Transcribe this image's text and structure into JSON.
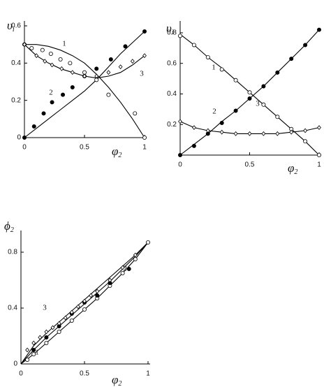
{
  "chart_data": [
    {
      "type": "scatter",
      "ylabel": "υ",
      "ylabel_sub": "i",
      "xlabel": "φ",
      "xlabel_sub": "2",
      "xlim": [
        0,
        1
      ],
      "ylim": [
        0,
        0.6
      ],
      "xticks": [
        0,
        0.5,
        1
      ],
      "yticks": [
        0,
        0.2,
        0.4,
        0.6
      ],
      "series": [
        {
          "name": "1",
          "marker": "open-circle",
          "x": [
            0,
            0.06,
            0.15,
            0.22,
            0.3,
            0.38,
            0.5,
            0.6,
            0.7,
            0.92,
            1
          ],
          "values": [
            0.5,
            0.48,
            0.47,
            0.45,
            0.42,
            0.4,
            0.35,
            0.31,
            0.23,
            0.13,
            0
          ]
        },
        {
          "name": "2",
          "marker": "filled-circle",
          "x": [
            0,
            0.08,
            0.16,
            0.23,
            0.32,
            0.4,
            0.5,
            0.6,
            0.72,
            0.84,
            1
          ],
          "values": [
            0,
            0.06,
            0.13,
            0.19,
            0.23,
            0.27,
            0.33,
            0.37,
            0.42,
            0.49,
            0.57
          ]
        },
        {
          "name": "3",
          "marker": "open-diamond",
          "x": [
            0,
            0.1,
            0.17,
            0.23,
            0.31,
            0.4,
            0.5,
            0.6,
            0.7,
            0.8,
            0.9,
            1
          ],
          "values": [
            0.5,
            0.44,
            0.41,
            0.39,
            0.37,
            0.35,
            0.33,
            0.33,
            0.35,
            0.38,
            0.41,
            0.44
          ]
        }
      ],
      "fit_x": [
        0,
        0.1,
        0.2,
        0.3,
        0.4,
        0.5,
        0.6,
        0.7,
        0.8,
        0.9,
        1
      ],
      "fits": [
        {
          "values": [
            0.5,
            0.5,
            0.49,
            0.47,
            0.44,
            0.4,
            0.34,
            0.27,
            0.19,
            0.1,
            0
          ]
        },
        {
          "values": [
            0,
            0.05,
            0.1,
            0.15,
            0.2,
            0.25,
            0.31,
            0.38,
            0.45,
            0.51,
            0.57
          ]
        },
        {
          "values": [
            0.5,
            0.44,
            0.4,
            0.37,
            0.35,
            0.33,
            0.32,
            0.33,
            0.35,
            0.39,
            0.44
          ]
        }
      ]
    },
    {
      "type": "scatter",
      "ylabel": "υ",
      "ylabel_sub": "i",
      "xlabel": "φ",
      "xlabel_sub": "2",
      "xlim": [
        0,
        1
      ],
      "ylim": [
        0,
        0.85
      ],
      "xticks": [
        0,
        0.5,
        1
      ],
      "yticks": [
        0.2,
        0.4,
        0.6,
        0.8
      ],
      "series": [
        {
          "name": "1",
          "marker": "open-circle",
          "x": [
            0,
            0.1,
            0.2,
            0.3,
            0.4,
            0.5,
            0.6,
            0.7,
            0.8,
            0.9,
            1
          ],
          "values": [
            0.78,
            0.72,
            0.64,
            0.56,
            0.49,
            0.41,
            0.33,
            0.25,
            0.17,
            0.09,
            0
          ]
        },
        {
          "name": "2",
          "marker": "filled-circle",
          "x": [
            0,
            0.1,
            0.2,
            0.3,
            0.4,
            0.5,
            0.6,
            0.7,
            0.8,
            0.9,
            1
          ],
          "values": [
            0,
            0.06,
            0.14,
            0.21,
            0.29,
            0.37,
            0.45,
            0.54,
            0.63,
            0.72,
            0.82
          ]
        },
        {
          "name": "3",
          "marker": "open-diamond",
          "x": [
            0,
            0.1,
            0.2,
            0.3,
            0.4,
            0.5,
            0.6,
            0.7,
            0.8,
            0.9,
            1
          ],
          "values": [
            0.22,
            0.18,
            0.16,
            0.15,
            0.14,
            0.14,
            0.14,
            0.14,
            0.15,
            0.16,
            0.18
          ]
        }
      ],
      "fit_x": [
        0,
        0.1,
        0.2,
        0.3,
        0.4,
        0.5,
        0.6,
        0.7,
        0.8,
        0.9,
        1
      ],
      "fits": [
        {
          "values": [
            0.79,
            0.72,
            0.64,
            0.57,
            0.49,
            0.41,
            0.33,
            0.25,
            0.17,
            0.09,
            0
          ]
        },
        {
          "values": [
            0,
            0.07,
            0.14,
            0.22,
            0.29,
            0.37,
            0.45,
            0.54,
            0.63,
            0.72,
            0.82
          ]
        },
        {
          "values": [
            0.22,
            0.18,
            0.16,
            0.15,
            0.14,
            0.14,
            0.14,
            0.14,
            0.15,
            0.16,
            0.18
          ]
        }
      ]
    },
    {
      "type": "scatter",
      "ylabel": "ϕ",
      "ylabel_sub": "2",
      "xlabel": "φ",
      "xlabel_sub": "2",
      "xlim": [
        0,
        1
      ],
      "ylim": [
        0,
        0.93
      ],
      "xticks": [
        0,
        0.5,
        1
      ],
      "yticks": [
        0,
        0.4,
        0.8
      ],
      "series": [
        {
          "name": "1",
          "marker": "open-circle",
          "x": [
            0.05,
            0.1,
            0.2,
            0.3,
            0.4,
            0.5,
            0.6,
            0.7,
            0.8,
            0.9,
            1
          ],
          "values": [
            0.03,
            0.07,
            0.15,
            0.23,
            0.31,
            0.39,
            0.47,
            0.56,
            0.65,
            0.75,
            0.87
          ]
        },
        {
          "name": "2",
          "marker": "filled-circle",
          "x": [
            0.1,
            0.2,
            0.3,
            0.4,
            0.5,
            0.6,
            0.7,
            0.85
          ],
          "values": [
            0.1,
            0.19,
            0.27,
            0.36,
            0.44,
            0.49,
            0.58,
            0.68
          ]
        },
        {
          "name": "3",
          "marker": "open-diamond",
          "x": [
            0.05,
            0.1,
            0.15,
            0.2,
            0.25,
            0.3,
            0.35,
            0.4,
            0.45,
            0.5,
            0.55,
            0.6,
            0.7,
            0.8,
            0.9
          ],
          "values": [
            0.1,
            0.15,
            0.19,
            0.23,
            0.26,
            0.29,
            0.33,
            0.37,
            0.41,
            0.45,
            0.49,
            0.52,
            0.6,
            0.69,
            0.78
          ]
        }
      ],
      "fit_x": [
        0,
        0.1,
        0.2,
        0.3,
        0.4,
        0.5,
        0.6,
        0.7,
        0.8,
        0.9,
        1
      ],
      "fits": [
        {
          "values": [
            0,
            0.07,
            0.15,
            0.23,
            0.31,
            0.39,
            0.47,
            0.56,
            0.65,
            0.75,
            0.87
          ]
        },
        {
          "values": [
            0,
            0.1,
            0.19,
            0.27,
            0.35,
            0.43,
            0.51,
            0.59,
            0.68,
            0.77,
            0.87
          ]
        },
        {
          "values": [
            0,
            0.13,
            0.22,
            0.3,
            0.38,
            0.46,
            0.54,
            0.62,
            0.7,
            0.78,
            0.87
          ]
        }
      ]
    }
  ]
}
